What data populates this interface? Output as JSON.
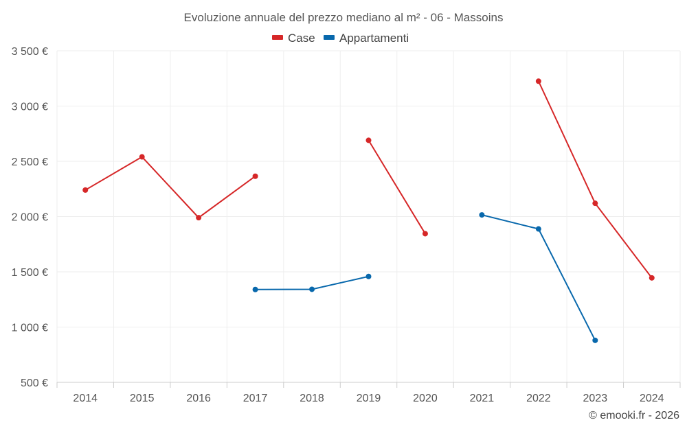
{
  "chart_data": {
    "type": "line",
    "title": "Evoluzione annuale del prezzo mediano al m² - 06 - Massoins",
    "xlabel": "",
    "ylabel": "",
    "categories": [
      "2014",
      "2015",
      "2016",
      "2017",
      "2018",
      "2019",
      "2020",
      "2021",
      "2022",
      "2023",
      "2024"
    ],
    "ylim": [
      500,
      3500
    ],
    "yticks": [
      500,
      1000,
      1500,
      2000,
      2500,
      3000,
      3500
    ],
    "ytick_labels": [
      "500 €",
      "1 000 €",
      "1 500 €",
      "2 000 €",
      "2 500 €",
      "3 000 €",
      "3 500 €"
    ],
    "grid": true,
    "legend_position": "top-center",
    "series": [
      {
        "name": "Case",
        "color": "#d62728",
        "values": [
          2240,
          2540,
          1990,
          2365,
          null,
          2690,
          1845,
          null,
          3225,
          2120,
          1445
        ]
      },
      {
        "name": "Appartamenti",
        "color": "#0868ac",
        "values": [
          null,
          null,
          null,
          1340,
          1342,
          1458,
          null,
          2015,
          1888,
          880,
          null
        ]
      }
    ]
  },
  "credit": "© emooki.fr - 2026"
}
